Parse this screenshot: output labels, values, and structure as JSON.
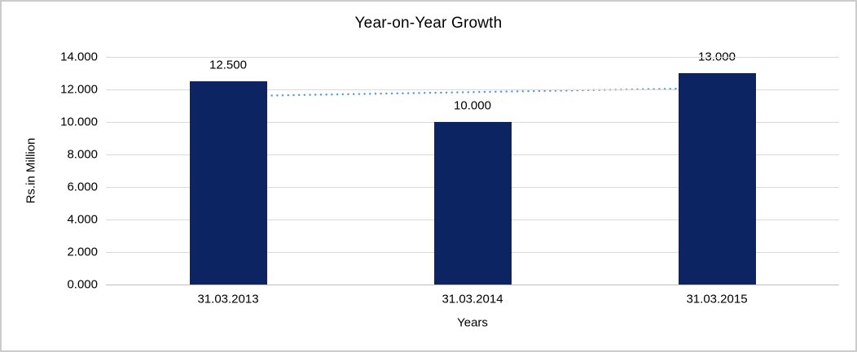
{
  "chart_data": {
    "type": "bar",
    "title": "Year-on-Year Growth",
    "categories": [
      "31.03.2013",
      "31.03.2014",
      "31.03.2015"
    ],
    "values": [
      12500,
      10000,
      13000
    ],
    "value_labels": [
      "12.500",
      "10.000",
      "13.000"
    ],
    "xlabel": "Years",
    "ylabel": "Rs.in Million",
    "ylim": [
      0,
      14000
    ],
    "ytick_step": 2000,
    "ytick_labels": [
      "0.000",
      "2.000",
      "4.000",
      "6.000",
      "8.000",
      "10.000",
      "12.000",
      "14.000"
    ],
    "grid": true,
    "legend": "none",
    "colors": {
      "bar": "#0c2461",
      "trendline": "#5b9bd5",
      "gridline": "#d9d9d9",
      "axis_line": "#bfbfbf",
      "text": "#000000"
    },
    "trendline": {
      "type": "linear",
      "style": "dotted",
      "start_value": 11583,
      "end_value": 12083
    }
  }
}
